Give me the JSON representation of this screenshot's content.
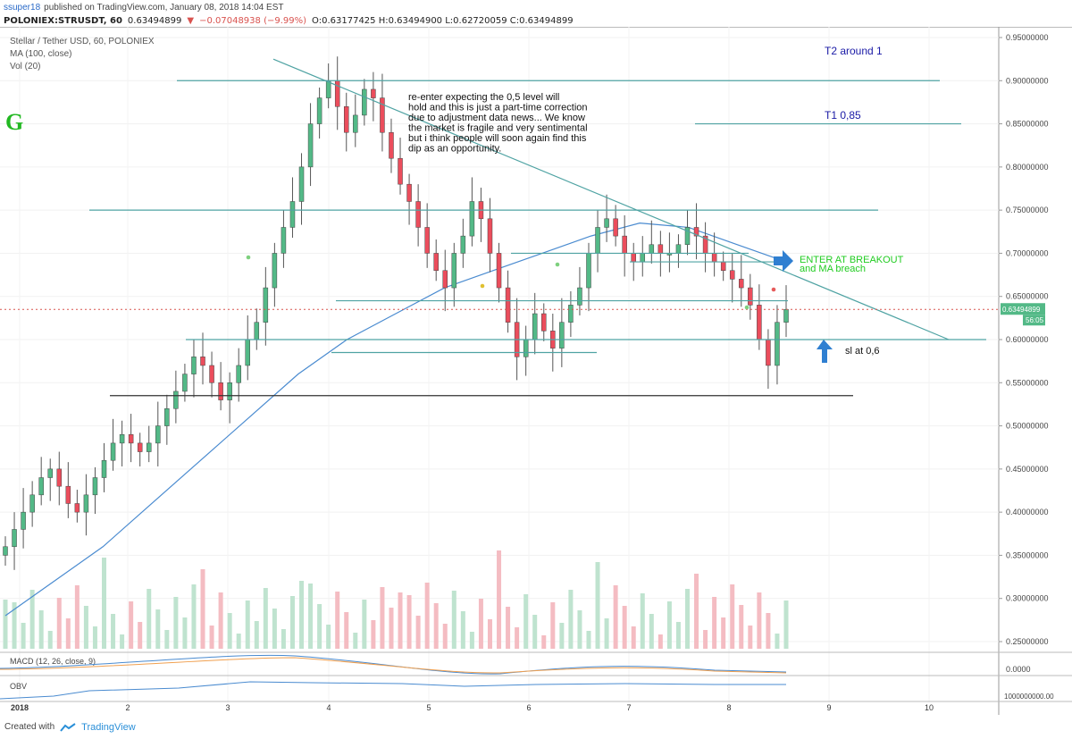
{
  "header": {
    "user": "ssuper18",
    "published_text": "published on TradingView.com, January 08, 2018 14:04 EST",
    "symbol": "POLONIEX:STRUSDT, 60",
    "last": "0.63494899",
    "change": "−0.07048938 (−9.99%)",
    "ohlc": "O:0.63177425 H:0.63494900 L:0.62720059 C:0.63494899"
  },
  "legend": {
    "title": "Stellar / Tether USD, 60, POLONIEX",
    "ma": "MA (100, close)",
    "vol": "Vol (20)"
  },
  "logo_letter": "G",
  "annotations": {
    "t2": "T2 around 1",
    "t1": "T1 0,85",
    "note": [
      "re-enter expecting the 0,5 level will",
      "hold and this is just a part-time correction",
      "due to adjustment data news... We know",
      "the market is fragile and very sentimental",
      "but i think people will soon again find this",
      "dip as an opportunity."
    ],
    "enter_1": "ENTER AT BREAKOUT",
    "enter_2": "and MA breach",
    "sl": "sl at 0,6"
  },
  "price_tag": {
    "value": "0.63494899",
    "countdown": "56:05"
  },
  "panels": {
    "macd": "MACD (12, 26, close, 9)",
    "macd_value": "0.0000",
    "obv": "OBV",
    "obv_value": "1000000000.00"
  },
  "colors": {
    "up": "#53b987",
    "down": "#eb4d5c",
    "line": "#4fa3a3",
    "ma": "#4a8bd0",
    "green_text": "#22cc22",
    "blue_text": "#1a1aa6",
    "arrow": "#2f7fd1"
  },
  "chart_data": {
    "type": "candlestick",
    "title": "Stellar / Tether USD, 60, POLONIEX",
    "y_ticks": [
      "0.95000000",
      "0.90000000",
      "0.85000000",
      "0.80000000",
      "0.75000000",
      "0.70000000",
      "0.65000000",
      "0.60000000",
      "0.55000000",
      "0.50000000",
      "0.45000000",
      "0.40000000",
      "0.35000000",
      "0.30000000",
      "0.25000000"
    ],
    "x_ticks": [
      "2018",
      "2",
      "3",
      "4",
      "5",
      "6",
      "7",
      "8",
      "9",
      "10"
    ],
    "ylim": [
      0.22,
      0.96
    ],
    "candles_close_approx": [
      0.36,
      0.38,
      0.4,
      0.42,
      0.44,
      0.45,
      0.43,
      0.41,
      0.4,
      0.42,
      0.44,
      0.46,
      0.48,
      0.49,
      0.48,
      0.47,
      0.48,
      0.5,
      0.52,
      0.54,
      0.56,
      0.58,
      0.57,
      0.55,
      0.53,
      0.55,
      0.57,
      0.6,
      0.62,
      0.66,
      0.7,
      0.73,
      0.76,
      0.8,
      0.85,
      0.88,
      0.9,
      0.87,
      0.84,
      0.86,
      0.89,
      0.88,
      0.84,
      0.81,
      0.78,
      0.76,
      0.73,
      0.7,
      0.68,
      0.66,
      0.7,
      0.72,
      0.76,
      0.74,
      0.7,
      0.66,
      0.62,
      0.58,
      0.6,
      0.63,
      0.61,
      0.59,
      0.62,
      0.64,
      0.66,
      0.7,
      0.73,
      0.74,
      0.72,
      0.7,
      0.69,
      0.7,
      0.71,
      0.7,
      0.7,
      0.71,
      0.73,
      0.72,
      0.7,
      0.69,
      0.68,
      0.67,
      0.66,
      0.64,
      0.6,
      0.57,
      0.62,
      0.635
    ],
    "horizontal_levels": [
      0.9,
      0.85,
      0.75,
      0.7,
      0.69,
      0.645,
      0.6,
      0.585,
      0.535
    ],
    "ma100_approx": [
      0.28,
      0.32,
      0.36,
      0.41,
      0.46,
      0.51,
      0.56,
      0.6,
      0.63,
      0.66,
      0.68,
      0.7,
      0.72,
      0.735,
      0.73,
      0.71,
      0.69
    ],
    "last_price": 0.63494899
  }
}
